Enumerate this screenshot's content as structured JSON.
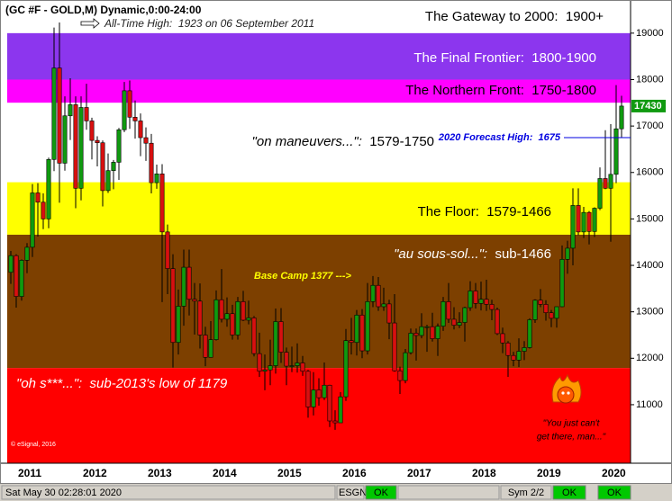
{
  "chart_data": {
    "type": "candlestick",
    "title": "(GC #F - GOLD,M) Dynamic,0:00-24:00",
    "all_time_high": "All-Time High:  1923 on 06 September 2011",
    "categories": [
      null,
      "2011",
      null,
      null,
      null,
      null,
      null,
      null,
      null,
      null,
      null,
      null,
      null,
      "2012",
      null,
      null,
      null,
      null,
      null,
      null,
      null,
      null,
      null,
      null,
      null,
      "2013",
      null,
      null,
      null,
      null,
      null,
      null,
      null,
      null,
      null,
      null,
      null,
      "2014",
      null,
      null,
      null,
      null,
      null,
      null,
      null,
      null,
      null,
      null,
      null,
      "2015",
      null,
      null,
      null,
      null,
      null,
      null,
      null,
      null,
      null,
      null,
      null,
      "2016",
      null,
      null,
      null,
      null,
      null,
      null,
      null,
      null,
      null,
      null,
      null,
      "2017",
      null,
      null,
      null,
      null,
      null,
      null,
      null,
      null,
      null,
      null,
      null,
      "2018",
      null,
      null,
      null,
      null,
      null,
      null,
      null,
      null,
      null,
      null,
      null,
      "2019",
      null,
      null,
      null,
      null,
      null,
      null,
      null,
      null,
      null,
      null,
      null,
      "2020",
      null,
      null,
      null,
      null
    ],
    "open": [
      13850,
      14210,
      13330,
      14110,
      14390,
      15560,
      15360,
      15000,
      16280,
      18250,
      16200,
      17220,
      17460,
      15660,
      17400,
      17110,
      16690,
      16640,
      15610,
      16040,
      16220,
      16920,
      17760,
      17190,
      17110,
      16750,
      16630,
      15780,
      15970,
      14720,
      13930,
      12340,
      13120,
      13960,
      13270,
      13230,
      12500,
      12020,
      12400,
      13260,
      12840,
      12960,
      12500,
      13220,
      12820,
      12870,
      12100,
      11720,
      11750,
      11840,
      12790,
      12130,
      11830,
      11840,
      11900,
      11720,
      10950,
      11320,
      11150,
      11420,
      10650,
      10610,
      11170,
      12380,
      12340,
      12930,
      12160,
      13220,
      13570,
      13110,
      13170,
      12760,
      11730,
      11520,
      12120,
      12540,
      12490,
      12680,
      12680,
      12420,
      12690,
      13220,
      12840,
      12710,
      12770,
      13090,
      13450,
      13180,
      13270,
      13160,
      13050,
      12530,
      12330,
      12060,
      11960,
      12150,
      12230,
      12830,
      13250,
      13160,
      12980,
      12860,
      13110,
      14130,
      14370,
      15290,
      14720,
      15140,
      14730,
      15230,
      15870,
      15660,
      15960,
      16940
    ],
    "high": [
      14310,
      14240,
      14130,
      14480,
      15750,
      15770,
      15550,
      16320,
      19120,
      19230,
      17640,
      18030,
      17640,
      17640,
      17910,
      17180,
      16780,
      16690,
      16410,
      16270,
      16960,
      17950,
      17980,
      17550,
      17270,
      16970,
      16830,
      16170,
      16180,
      14880,
      14240,
      13480,
      14340,
      14340,
      13620,
      13610,
      12680,
      12800,
      13460,
      13920,
      13310,
      13150,
      13320,
      13450,
      13240,
      12910,
      12550,
      12080,
      12400,
      13070,
      13080,
      12230,
      12250,
      12320,
      12050,
      11750,
      11700,
      11570,
      11910,
      11430,
      10880,
      11270,
      12630,
      12870,
      13040,
      13060,
      13620,
      13770,
      13750,
      13520,
      13260,
      13380,
      11820,
      12200,
      12640,
      12640,
      12970,
      12720,
      12980,
      12750,
      13320,
      13620,
      13100,
      12990,
      13110,
      13660,
      13620,
      13650,
      13690,
      13260,
      13090,
      12660,
      12370,
      12140,
      12430,
      12370,
      12860,
      13270,
      13490,
      13250,
      13040,
      13110,
      14430,
      14530,
      15660,
      15660,
      15260,
      15170,
      15250,
      16110,
      16910,
      17040,
      17880,
      17650
    ],
    "low": [
      13600,
      13090,
      13240,
      13830,
      14180,
      14620,
      14780,
      14800,
      16030,
      15350,
      16040,
      16700,
      15230,
      15400,
      16920,
      16280,
      16130,
      15270,
      15560,
      15640,
      15840,
      16870,
      16940,
      16730,
      16350,
      16250,
      15550,
      15650,
      13210,
      13380,
      11800,
      12080,
      12700,
      12920,
      12510,
      12210,
      11830,
      12020,
      12380,
      12770,
      12680,
      12400,
      12400,
      12800,
      12730,
      12040,
      11600,
      11310,
      11420,
      11670,
      11900,
      11420,
      11700,
      11690,
      11620,
      10720,
      10770,
      10980,
      11100,
      10520,
      10460,
      10620,
      11080,
      12080,
      12060,
      12000,
      12080,
      13100,
      13020,
      13020,
      12410,
      11710,
      11230,
      11460,
      12080,
      11950,
      12430,
      12140,
      12360,
      12050,
      12590,
      12760,
      12620,
      12650,
      12360,
      13020,
      13070,
      13030,
      13020,
      12820,
      12500,
      12110,
      11600,
      11830,
      11810,
      11960,
      12210,
      12760,
      13100,
      12810,
      12670,
      12660,
      13100,
      13820,
      14000,
      14650,
      14590,
      14450,
      14610,
      15190,
      15640,
      14510,
      15770,
      16760
    ],
    "close": [
      14210,
      13330,
      14110,
      14390,
      15560,
      15360,
      15000,
      16280,
      18250,
      16200,
      17220,
      17460,
      15660,
      17400,
      17110,
      16690,
      16640,
      15610,
      16040,
      16220,
      16920,
      17760,
      17190,
      17110,
      16750,
      16630,
      15780,
      15970,
      14720,
      13930,
      12340,
      13120,
      13960,
      13270,
      13230,
      12500,
      12020,
      12400,
      13260,
      12840,
      12960,
      12500,
      13220,
      12820,
      12870,
      12100,
      11720,
      11750,
      11840,
      12790,
      12130,
      11830,
      11840,
      11900,
      11720,
      10950,
      11320,
      11150,
      11420,
      10650,
      10610,
      11170,
      12380,
      12340,
      12930,
      12160,
      13220,
      13570,
      13110,
      13170,
      12760,
      11730,
      11520,
      12120,
      12540,
      12490,
      12680,
      12680,
      12420,
      12690,
      13220,
      12840,
      12710,
      12770,
      13090,
      13450,
      13180,
      13270,
      13160,
      13050,
      12530,
      12330,
      12060,
      11960,
      12150,
      12230,
      12830,
      13250,
      13160,
      12980,
      12860,
      13110,
      14130,
      14370,
      15290,
      14720,
      15140,
      14730,
      15230,
      15870,
      15660,
      15960,
      16940,
      17430
    ],
    "up_color": "#109a10",
    "down_color": "#d81010",
    "ylim": [
      9740,
      19520
    ],
    "yticks": [
      11000,
      12000,
      13000,
      14000,
      15000,
      16000,
      17000,
      18000,
      19000
    ],
    "bands": [
      {
        "name": "The Gateway to 2000:",
        "range": "1900+",
        "low": 19000,
        "color": "#ffffff"
      },
      {
        "name": "The Final Frontier:",
        "range": "1800-1900",
        "low": 18000,
        "color": "#8c36ee"
      },
      {
        "name": "The Northern Front:",
        "range": "1750-1800",
        "low": 17500,
        "color": "#ff00ff"
      },
      {
        "name": "\"on maneuvers...\":",
        "range": "1579-1750",
        "low": 15790,
        "color": "#ffffff"
      },
      {
        "name": "The Floor:",
        "range": "1579-1466",
        "low": 14660,
        "color": "#ffff00"
      },
      {
        "name": "\"au sous-sol...\":",
        "range": "sub-1466",
        "low": 11790,
        "color": "#7d4000"
      },
      {
        "name": "\"oh s***...\":",
        "range": "sub-2013's low of 1179",
        "color": "#ff0000"
      }
    ],
    "forecast": {
      "label": "2020 Forecast High:  1675",
      "value": 16750,
      "color": "#0000e0"
    },
    "base_camp": {
      "label": "Base Camp 1377 --->",
      "value": 13770,
      "color": "#ffff00"
    },
    "quote": [
      "\"You just can't",
      "get there, man...\""
    ],
    "copyright": "© eSignal, 2016"
  },
  "status_bar": {
    "datetime": "Sat May 30 02:28:01 2020",
    "feed": "ESGNL:",
    "feed_status": "OK",
    "symbols": "Sym 2/2",
    "status_2": "OK",
    "status_3": "OK"
  }
}
